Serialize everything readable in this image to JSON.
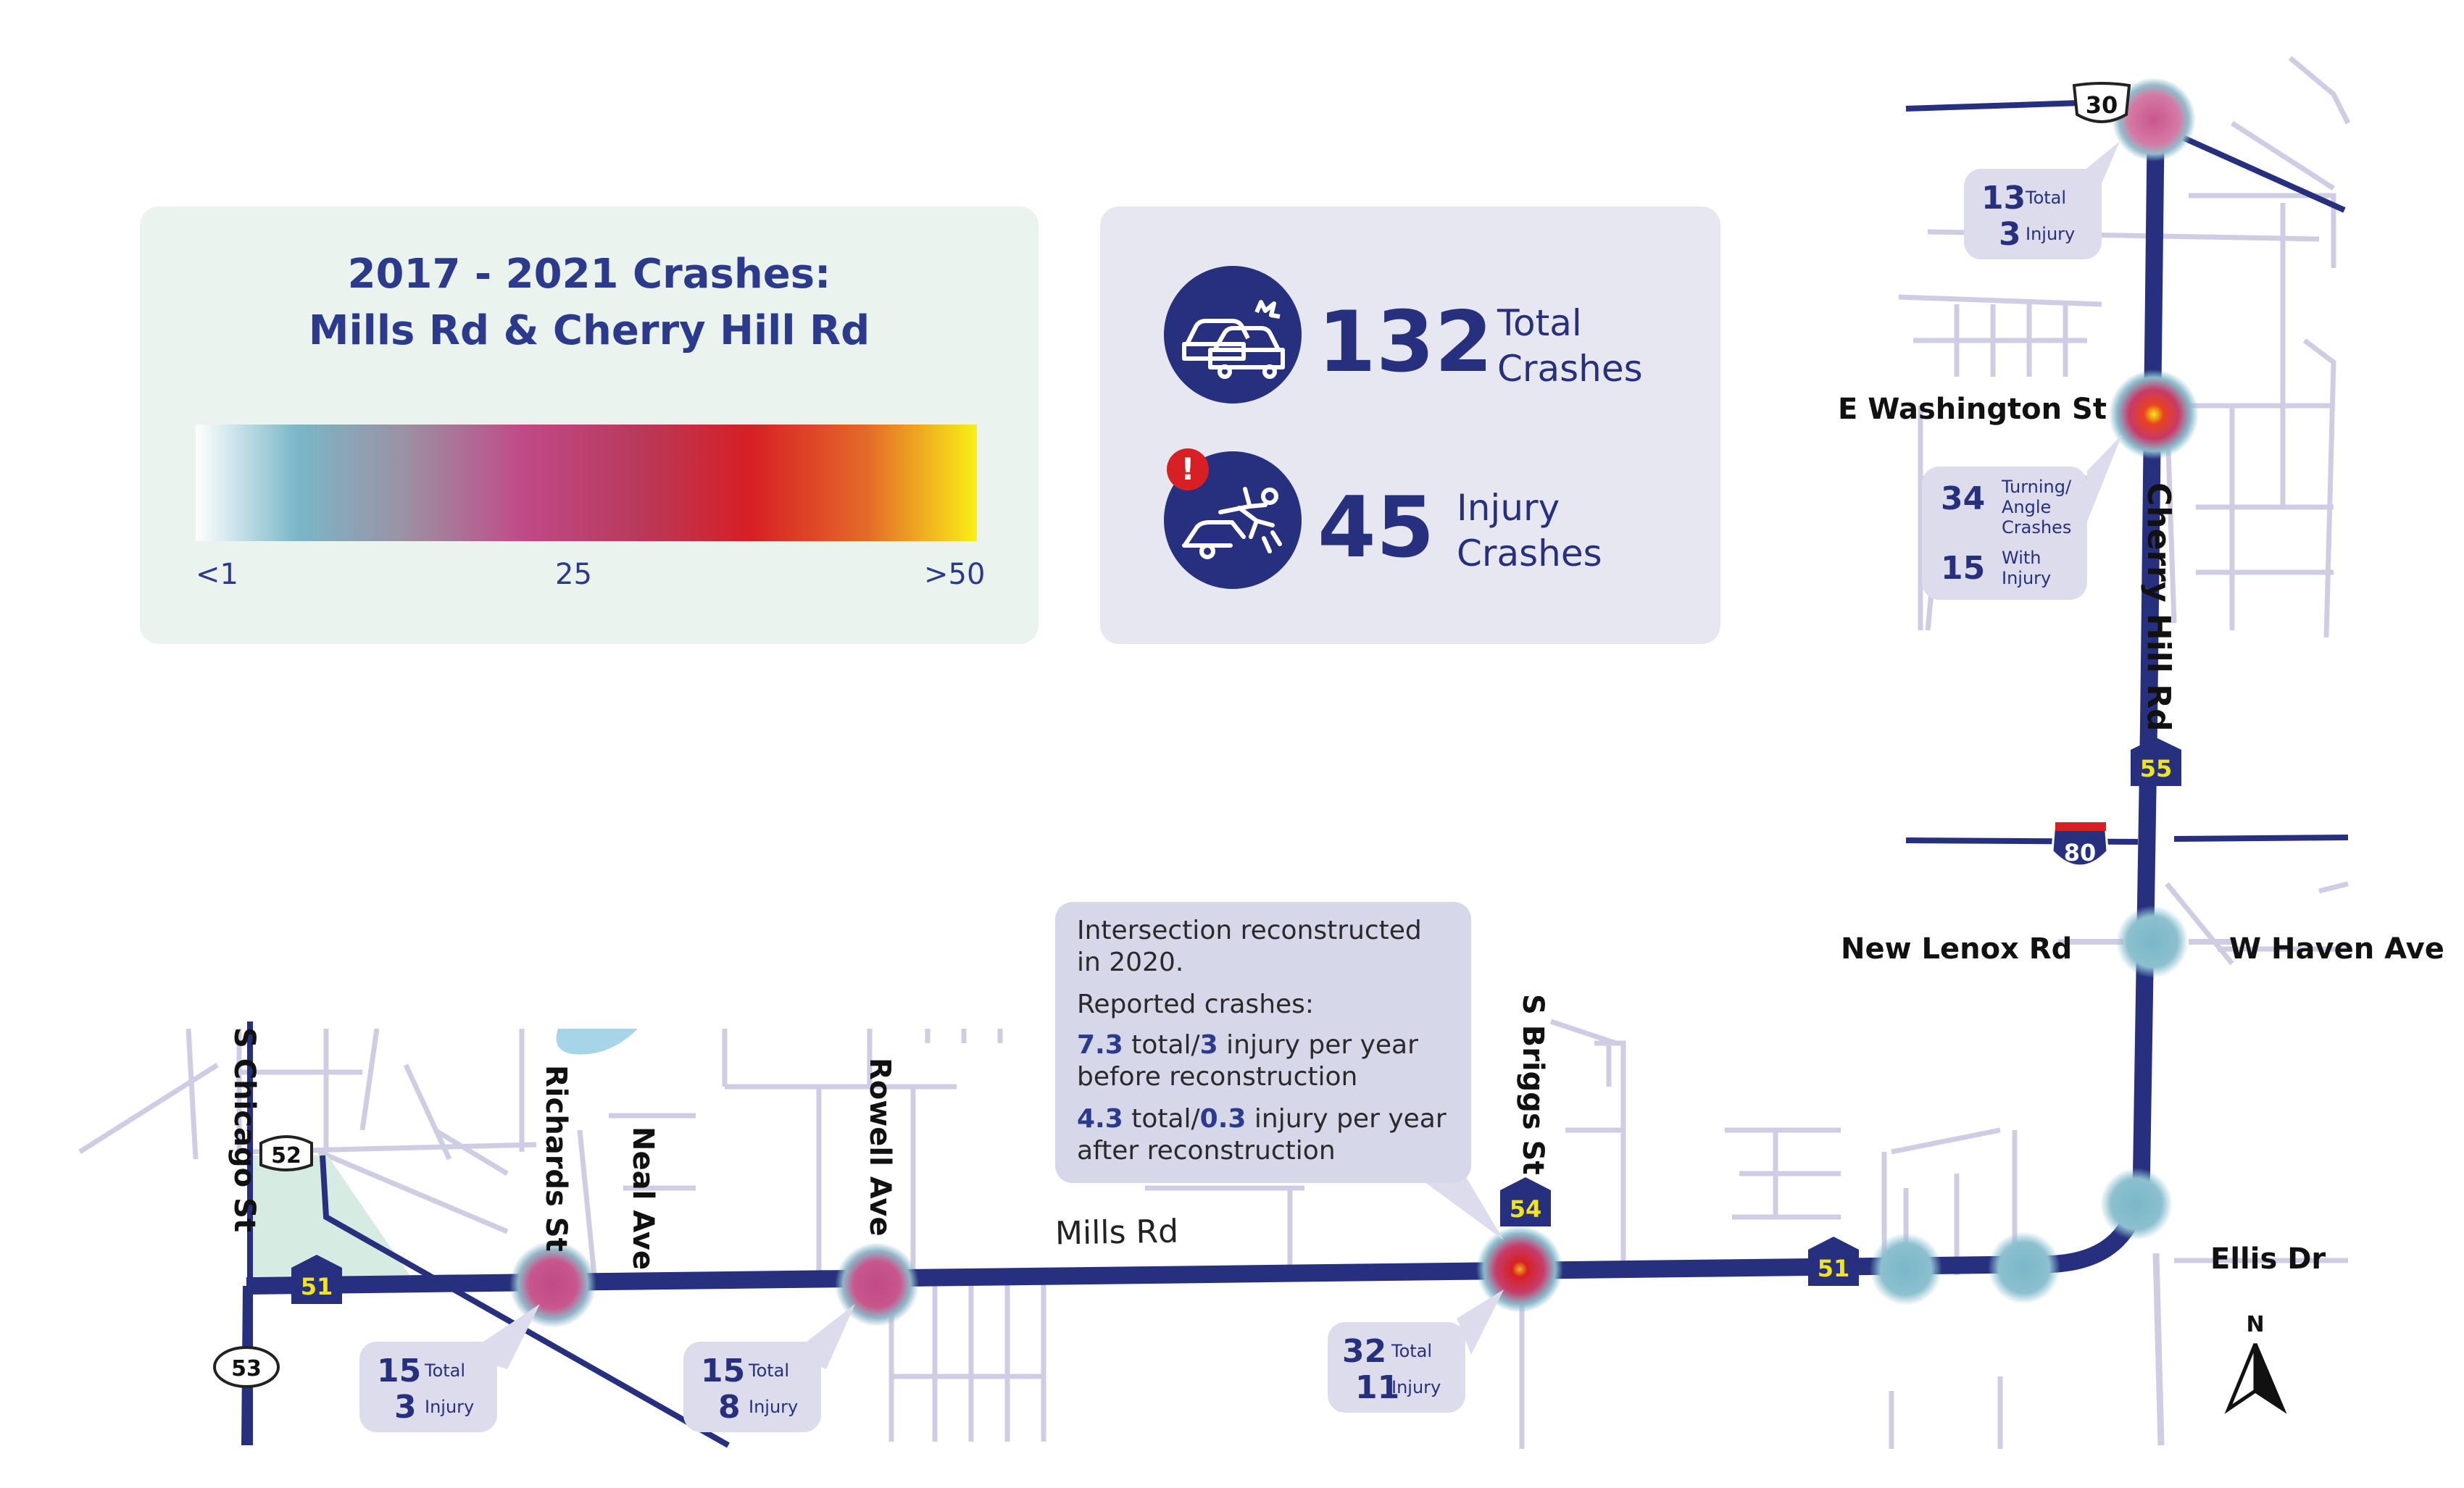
{
  "legend": {
    "title_line1": "2017 - 2021 Crashes:",
    "title_line2": "Mills Rd & Cherry Hill Rd",
    "scale_min": "<1",
    "scale_mid": "25",
    "scale_max": ">50",
    "gradient_colors": [
      "#ffffff",
      "#79b7c8",
      "#9c90a3",
      "#c04a87",
      "#b8395a",
      "#d71f24",
      "#e56a2a",
      "#f9ef16"
    ]
  },
  "summary": {
    "total_value": "132",
    "total_label_1": "Total",
    "total_label_2": "Crashes",
    "total_icon": "car-crash-icon",
    "injury_value": "45",
    "injury_label_1": "Injury",
    "injury_label_2": "Crashes",
    "injury_icon": "injured-pedestrian-icon",
    "alert_mark": "!"
  },
  "reconstruction_note": {
    "line1": "Intersection reconstructed",
    "line2": "in 2020.",
    "line3": "Reported crashes:",
    "before_total": "7.3",
    "before_injury": "3",
    "before_text_a": " total/",
    "before_text_b": " injury per year",
    "before_text_c": "before reconstruction",
    "after_total": "4.3",
    "after_injury": "0.3",
    "after_text_a": " total/",
    "after_text_b": " injury per year",
    "after_text_c": "after reconstruction"
  },
  "callouts": {
    "us30": {
      "total": "13",
      "total_label": "Total",
      "injury": "3",
      "injury_label": "Injury"
    },
    "washington": {
      "angle": "34",
      "angle_label_1": "Turning/",
      "angle_label_2": "Angle",
      "angle_label_3": "Crashes",
      "injury": "15",
      "injury_label_1": "With",
      "injury_label_2": "Injury"
    },
    "richards": {
      "total": "15",
      "total_label": "Total",
      "injury": "3",
      "injury_label": "Injury"
    },
    "rowell": {
      "total": "15",
      "total_label": "Total",
      "injury": "8",
      "injury_label": "Injury"
    },
    "briggs": {
      "total": "32",
      "total_label": "Total",
      "injury": "11",
      "injury_label": "Injury"
    }
  },
  "streets": {
    "e_washington": "E Washington St",
    "cherry_hill": "Cherry Hill Rd",
    "new_lenox": "New Lenox Rd",
    "w_haven": "W Haven Ave",
    "ellis": "Ellis Dr",
    "s_chicago": "S Chicago St",
    "richards": "Richards St",
    "neal": "Neal Ave",
    "rowell": "Rowell Ave",
    "s_briggs": "S Briggs St",
    "mills": "Mills Rd"
  },
  "shields": {
    "us30": "30",
    "il55": "55",
    "i80": "80",
    "il54": "54",
    "il51_east": "51",
    "il51_west": "51",
    "il52": "52",
    "il53": "53"
  },
  "north_arrow": "N",
  "colors": {
    "highway": "#26307f",
    "local_road": "#cfcde3",
    "text_accent": "#2b3a8d",
    "water": "#a6d4e8",
    "park": "#d6ebe2"
  }
}
